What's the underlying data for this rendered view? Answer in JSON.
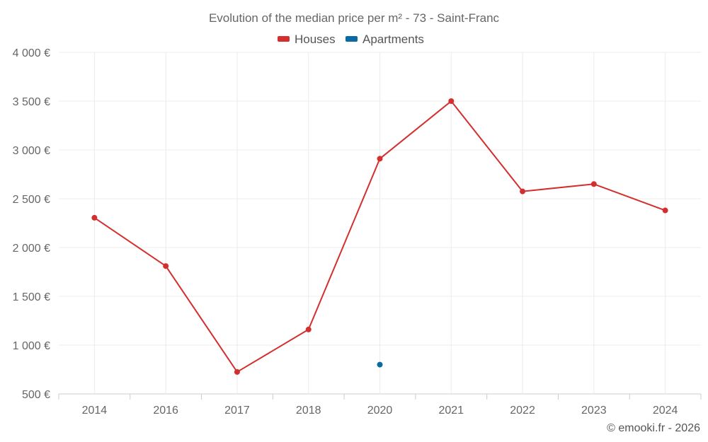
{
  "chart_data": {
    "type": "line",
    "title": "Evolution of the median price per m² - 73 - Saint-Franc",
    "xlabel": "",
    "ylabel": "",
    "categories": [
      "2014",
      "2016",
      "2017",
      "2018",
      "2020",
      "2021",
      "2022",
      "2023",
      "2024"
    ],
    "y_ticks": [
      {
        "value": 500,
        "label": "500 €"
      },
      {
        "value": 1000,
        "label": "1 000 €"
      },
      {
        "value": 1500,
        "label": "1 500 €"
      },
      {
        "value": 2000,
        "label": "2 000 €"
      },
      {
        "value": 2500,
        "label": "2 500 €"
      },
      {
        "value": 3000,
        "label": "3 000 €"
      },
      {
        "value": 3500,
        "label": "3 500 €"
      },
      {
        "value": 4000,
        "label": "4 000 €"
      }
    ],
    "ylim": [
      500,
      4000
    ],
    "grid": true,
    "legend_position": "top-center",
    "series": [
      {
        "name": "Houses",
        "color": "#d32f2f",
        "values": [
          2305,
          1810,
          725,
          1160,
          2910,
          3500,
          2575,
          2650,
          2380
        ]
      },
      {
        "name": "Apartments",
        "color": "#0a6aa1",
        "values": [
          null,
          null,
          null,
          null,
          800,
          null,
          null,
          null,
          null
        ]
      }
    ],
    "credit": "© emooki.fr - 2026"
  }
}
